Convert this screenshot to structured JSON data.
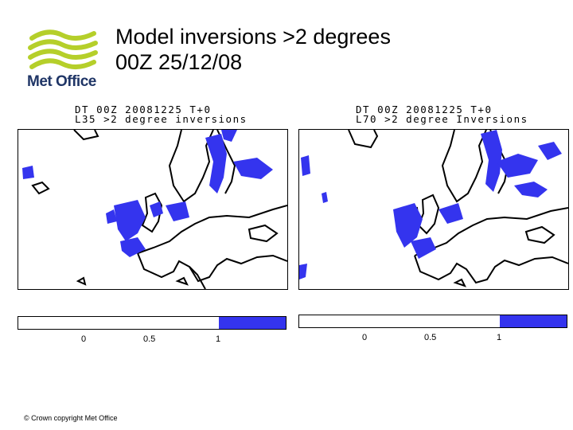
{
  "header": {
    "brand": "Met Office",
    "title_line1": "Model inversions >2 degrees",
    "title_line2": "00Z 25/12/08"
  },
  "panels": [
    {
      "caption_line1": "DT 00Z 20081225 T+0",
      "caption_line2": "L35 >2 degree inversions",
      "colorbar": {
        "ticks": [
          "0",
          "0.5",
          "1"
        ],
        "filled_fraction": 0.25,
        "fill_color": "#3434ee"
      }
    },
    {
      "caption_line1": "DT 00Z 20081225 T+0",
      "caption_line2": "L70 >2 degree Inversions",
      "colorbar": {
        "ticks": [
          "0",
          "0.5",
          "1"
        ],
        "filled_fraction": 0.25,
        "fill_color": "#3434ee"
      }
    }
  ],
  "footer": {
    "copyright": "© Crown copyright   Met Office"
  },
  "colors": {
    "inversion": "#3434ee",
    "logo_green": "#b5cf2a",
    "logo_text": "#1f3566"
  }
}
